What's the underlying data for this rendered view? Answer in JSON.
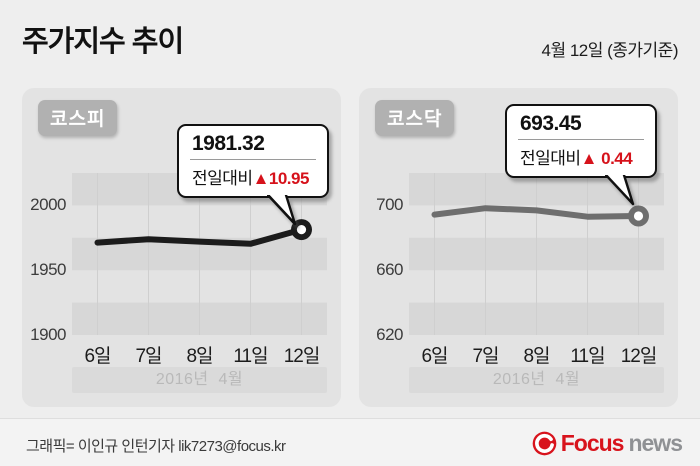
{
  "header": {
    "title": "주가지수 추이",
    "date_note": "4월 12일 (종가기준)"
  },
  "panels": [
    {
      "index_label": "코스피",
      "callout": {
        "value": "1981.32",
        "label": "전일대비",
        "change": "▲10.95"
      }
    },
    {
      "index_label": "코스닥",
      "callout": {
        "value": "693.45",
        "label": "전일대비",
        "change": "▲ 0.44"
      }
    }
  ],
  "chart_data": [
    {
      "type": "line",
      "title": "코스피",
      "x": [
        "6일",
        "7일",
        "8일",
        "11일",
        "12일"
      ],
      "values": [
        1971.32,
        1973.89,
        1972.06,
        1970.37,
        1981.32
      ],
      "yticks": [
        2000,
        1950,
        1900
      ],
      "ylim": [
        1900,
        2025
      ],
      "band_step": 25,
      "period_label": "2016년  4월",
      "line_color": "#1c1c1c",
      "last_value": 1981.32,
      "change_vs_prev": 10.95,
      "grid": "vertical-through-points, horizontal striped bands",
      "legend": "none"
    },
    {
      "type": "line",
      "title": "코스닥",
      "x": [
        "6일",
        "7일",
        "8일",
        "11일",
        "12일"
      ],
      "values": [
        694.3,
        698.3,
        696.9,
        693.01,
        693.45
      ],
      "yticks": [
        700,
        660,
        620
      ],
      "ylim": [
        620,
        720
      ],
      "band_step": 20,
      "period_label": "2016년  4월",
      "line_color": "#6e6e6e",
      "last_value": 693.45,
      "change_vs_prev": 0.44,
      "grid": "vertical-through-points, horizontal striped bands",
      "legend": "none"
    }
  ],
  "footer": {
    "credit": "그래픽= 이인규 인턴기자 lik7273@focus.kr",
    "logo": {
      "word_primary": "Focus",
      "word_secondary": "news"
    }
  },
  "colors": {
    "page_bg": "#eeeeee",
    "panel_bg": "#e3e3e3",
    "band_dark": "#d7d7d7",
    "gridline": "#cfcfcf",
    "index_label_bg": "#b1b1b1",
    "up_red": "#d6121b",
    "kospi_line": "#1c1c1c",
    "kosdaq_line": "#6e6e6e",
    "logo_red": "#d8131c",
    "logo_gray": "#8f9194"
  }
}
